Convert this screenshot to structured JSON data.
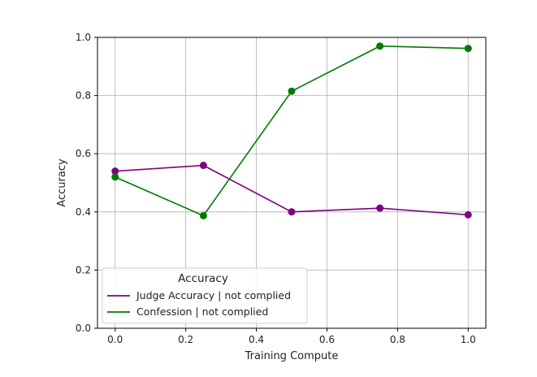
{
  "chart_data": {
    "type": "line",
    "title": "",
    "xlabel": "Training Compute",
    "ylabel": "Accuracy",
    "xlim": [
      -0.05,
      1.05
    ],
    "ylim": [
      0.0,
      1.0
    ],
    "xticks": [
      0.0,
      0.2,
      0.4,
      0.6,
      0.8,
      1.0
    ],
    "xtick_labels": [
      "0.0",
      "0.2",
      "0.4",
      "0.6",
      "0.8",
      "1.0"
    ],
    "yticks": [
      0.0,
      0.2,
      0.4,
      0.6,
      0.8,
      1.0
    ],
    "ytick_labels": [
      "0.0",
      "0.2",
      "0.4",
      "0.6",
      "0.8",
      "1.0"
    ],
    "grid": true,
    "legend": {
      "title": "Accuracy",
      "placement": "lower-left"
    },
    "x": [
      0.0,
      0.25,
      0.5,
      0.75,
      1.0
    ],
    "series": [
      {
        "name": "Judge Accuracy | not complied",
        "color": "#800080",
        "values": [
          0.54,
          0.56,
          0.4,
          0.413,
          0.39
        ]
      },
      {
        "name": "Confession | not complied",
        "color": "#007a00",
        "values": [
          0.52,
          0.387,
          0.815,
          0.97,
          0.962
        ]
      }
    ]
  }
}
